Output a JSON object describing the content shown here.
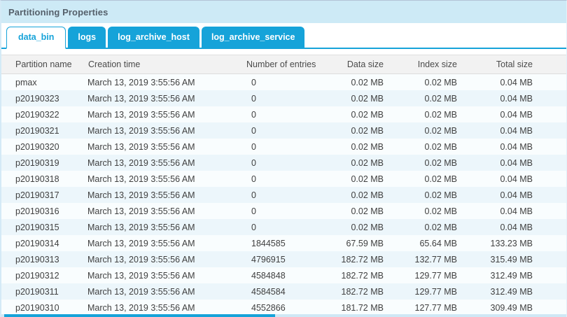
{
  "panel": {
    "title": "Partitioning Properties"
  },
  "tabs": {
    "items": [
      {
        "label": "data_bin",
        "active": true
      },
      {
        "label": "logs",
        "active": false
      },
      {
        "label": "log_archive_host",
        "active": false
      },
      {
        "label": "log_archive_service",
        "active": false
      }
    ]
  },
  "table": {
    "columns": [
      {
        "key": "partition-name",
        "label": "Partition name",
        "align": "left"
      },
      {
        "key": "creation-time",
        "label": "Creation time",
        "align": "left"
      },
      {
        "key": "entries",
        "label": "Number of entries",
        "align": "left"
      },
      {
        "key": "data-size",
        "label": "Data size",
        "align": "right"
      },
      {
        "key": "index-size",
        "label": "Index size",
        "align": "right"
      },
      {
        "key": "total-size",
        "label": "Total size",
        "align": "right"
      }
    ],
    "rows": [
      [
        "pmax",
        "March 13, 2019 3:55:56 AM",
        "0",
        "0.02 MB",
        "0.02 MB",
        "0.04 MB"
      ],
      [
        "p20190323",
        "March 13, 2019 3:55:56 AM",
        "0",
        "0.02 MB",
        "0.02 MB",
        "0.04 MB"
      ],
      [
        "p20190322",
        "March 13, 2019 3:55:56 AM",
        "0",
        "0.02 MB",
        "0.02 MB",
        "0.04 MB"
      ],
      [
        "p20190321",
        "March 13, 2019 3:55:56 AM",
        "0",
        "0.02 MB",
        "0.02 MB",
        "0.04 MB"
      ],
      [
        "p20190320",
        "March 13, 2019 3:55:56 AM",
        "0",
        "0.02 MB",
        "0.02 MB",
        "0.04 MB"
      ],
      [
        "p20190319",
        "March 13, 2019 3:55:56 AM",
        "0",
        "0.02 MB",
        "0.02 MB",
        "0.04 MB"
      ],
      [
        "p20190318",
        "March 13, 2019 3:55:56 AM",
        "0",
        "0.02 MB",
        "0.02 MB",
        "0.04 MB"
      ],
      [
        "p20190317",
        "March 13, 2019 3:55:56 AM",
        "0",
        "0.02 MB",
        "0.02 MB",
        "0.04 MB"
      ],
      [
        "p20190316",
        "March 13, 2019 3:55:56 AM",
        "0",
        "0.02 MB",
        "0.02 MB",
        "0.04 MB"
      ],
      [
        "p20190315",
        "March 13, 2019 3:55:56 AM",
        "0",
        "0.02 MB",
        "0.02 MB",
        "0.04 MB"
      ],
      [
        "p20190314",
        "March 13, 2019 3:55:56 AM",
        "1844585",
        "67.59 MB",
        "65.64 MB",
        "133.23 MB"
      ],
      [
        "p20190313",
        "March 13, 2019 3:55:56 AM",
        "4796915",
        "182.72 MB",
        "132.77 MB",
        "315.49 MB"
      ],
      [
        "p20190312",
        "March 13, 2019 3:55:56 AM",
        "4584848",
        "182.72 MB",
        "129.77 MB",
        "312.49 MB"
      ],
      [
        "p20190311",
        "March 13, 2019 3:55:56 AM",
        "4584584",
        "182.72 MB",
        "129.77 MB",
        "312.49 MB"
      ],
      [
        "p20190310",
        "March 13, 2019 3:55:56 AM",
        "4552866",
        "181.72 MB",
        "127.77 MB",
        "309.49 MB"
      ]
    ]
  },
  "colors": {
    "accent": "#16a3d9",
    "title_bar_bg": "#cdeaf6",
    "header_bg": "#f2f2f2",
    "row_odd_bg": "#f9fdfe",
    "row_even_bg": "#ecf6fb"
  }
}
